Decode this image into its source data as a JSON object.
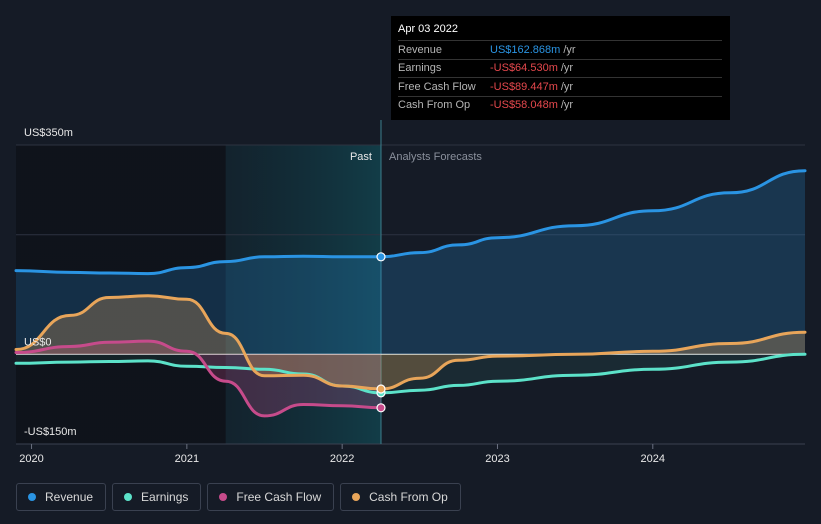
{
  "colors": {
    "revenue": "#2a94e3",
    "earnings": "#5ce2c9",
    "fcf": "#c64b8b",
    "cfo": "#e8a55a",
    "background": "#151b26",
    "grid": "#2d3340"
  },
  "tooltip": {
    "date": "Apr 03 2022",
    "rows": [
      {
        "label": "Revenue",
        "value": "US$162.868m",
        "unit": "/yr",
        "color": "#2a94e3"
      },
      {
        "label": "Earnings",
        "value": "-US$64.530m",
        "unit": "/yr",
        "color": "#e5484d"
      },
      {
        "label": "Free Cash Flow",
        "value": "-US$89.447m",
        "unit": "/yr",
        "color": "#e5484d"
      },
      {
        "label": "Cash From Op",
        "value": "-US$58.048m",
        "unit": "/yr",
        "color": "#e5484d"
      }
    ]
  },
  "legend": [
    {
      "label": "Revenue",
      "color": "#2a94e3"
    },
    {
      "label": "Earnings",
      "color": "#5ce2c9"
    },
    {
      "label": "Free Cash Flow",
      "color": "#c64b8b"
    },
    {
      "label": "Cash From Op",
      "color": "#e8a55a"
    }
  ],
  "chart_data": {
    "type": "line",
    "title": "",
    "ylabel_top": "US$350m",
    "ylabel_zero": "US$0",
    "ylabel_bottom": "-US$150m",
    "ylim": [
      -150,
      350
    ],
    "xlim": [
      2019.9,
      2024.98
    ],
    "x_ticks": [
      {
        "value": 2020.0,
        "label": "2020"
      },
      {
        "value": 2021.0,
        "label": "2021"
      },
      {
        "value": 2022.0,
        "label": "2022"
      },
      {
        "value": 2023.0,
        "label": "2023"
      },
      {
        "value": 2024.0,
        "label": "2024"
      }
    ],
    "past_label": "Past",
    "forecast_label": "Analysts Forecasts",
    "divider_x": 2022.25,
    "highlight_start_x": 2021.25,
    "past_shade_start_x": 2019.9,
    "series": [
      {
        "name": "Revenue",
        "key": "revenue",
        "points": [
          [
            2019.9,
            140
          ],
          [
            2020.25,
            137
          ],
          [
            2020.5,
            136
          ],
          [
            2020.75,
            135
          ],
          [
            2021.0,
            145
          ],
          [
            2021.25,
            155
          ],
          [
            2021.5,
            163
          ],
          [
            2021.75,
            164
          ],
          [
            2022.0,
            163
          ],
          [
            2022.25,
            163
          ],
          [
            2022.5,
            170
          ],
          [
            2022.75,
            183
          ],
          [
            2023.0,
            195
          ],
          [
            2023.5,
            215
          ],
          [
            2024.0,
            240
          ],
          [
            2024.5,
            270
          ],
          [
            2024.98,
            307
          ]
        ]
      },
      {
        "name": "Earnings",
        "key": "earnings",
        "points": [
          [
            2019.9,
            -15
          ],
          [
            2020.25,
            -13
          ],
          [
            2020.5,
            -12
          ],
          [
            2020.75,
            -11
          ],
          [
            2021.0,
            -20
          ],
          [
            2021.25,
            -22
          ],
          [
            2021.5,
            -25
          ],
          [
            2021.75,
            -33
          ],
          [
            2022.0,
            -53
          ],
          [
            2022.25,
            -64.53
          ],
          [
            2022.5,
            -60
          ],
          [
            2022.75,
            -52
          ],
          [
            2023.0,
            -45
          ],
          [
            2023.5,
            -35
          ],
          [
            2024.0,
            -25
          ],
          [
            2024.5,
            -13
          ],
          [
            2024.98,
            0
          ]
        ]
      },
      {
        "name": "Free Cash Flow",
        "key": "fcf",
        "points": [
          [
            2019.9,
            3
          ],
          [
            2020.25,
            13
          ],
          [
            2020.5,
            20
          ],
          [
            2020.75,
            22
          ],
          [
            2021.0,
            5
          ],
          [
            2021.25,
            -45
          ],
          [
            2021.5,
            -103
          ],
          [
            2021.75,
            -84
          ],
          [
            2022.0,
            -86
          ],
          [
            2022.25,
            -89.447
          ]
        ]
      },
      {
        "name": "Cash From Op",
        "key": "cfo",
        "points": [
          [
            2019.9,
            8
          ],
          [
            2020.25,
            65
          ],
          [
            2020.5,
            95
          ],
          [
            2020.75,
            98
          ],
          [
            2021.0,
            92
          ],
          [
            2021.25,
            35
          ],
          [
            2021.5,
            -36
          ],
          [
            2021.75,
            -35
          ],
          [
            2022.0,
            -53
          ],
          [
            2022.25,
            -58.048
          ],
          [
            2022.5,
            -40
          ],
          [
            2022.75,
            -10
          ],
          [
            2023.0,
            -3
          ],
          [
            2023.5,
            0
          ],
          [
            2024.0,
            5
          ],
          [
            2024.5,
            18
          ],
          [
            2024.98,
            37
          ]
        ]
      }
    ]
  }
}
